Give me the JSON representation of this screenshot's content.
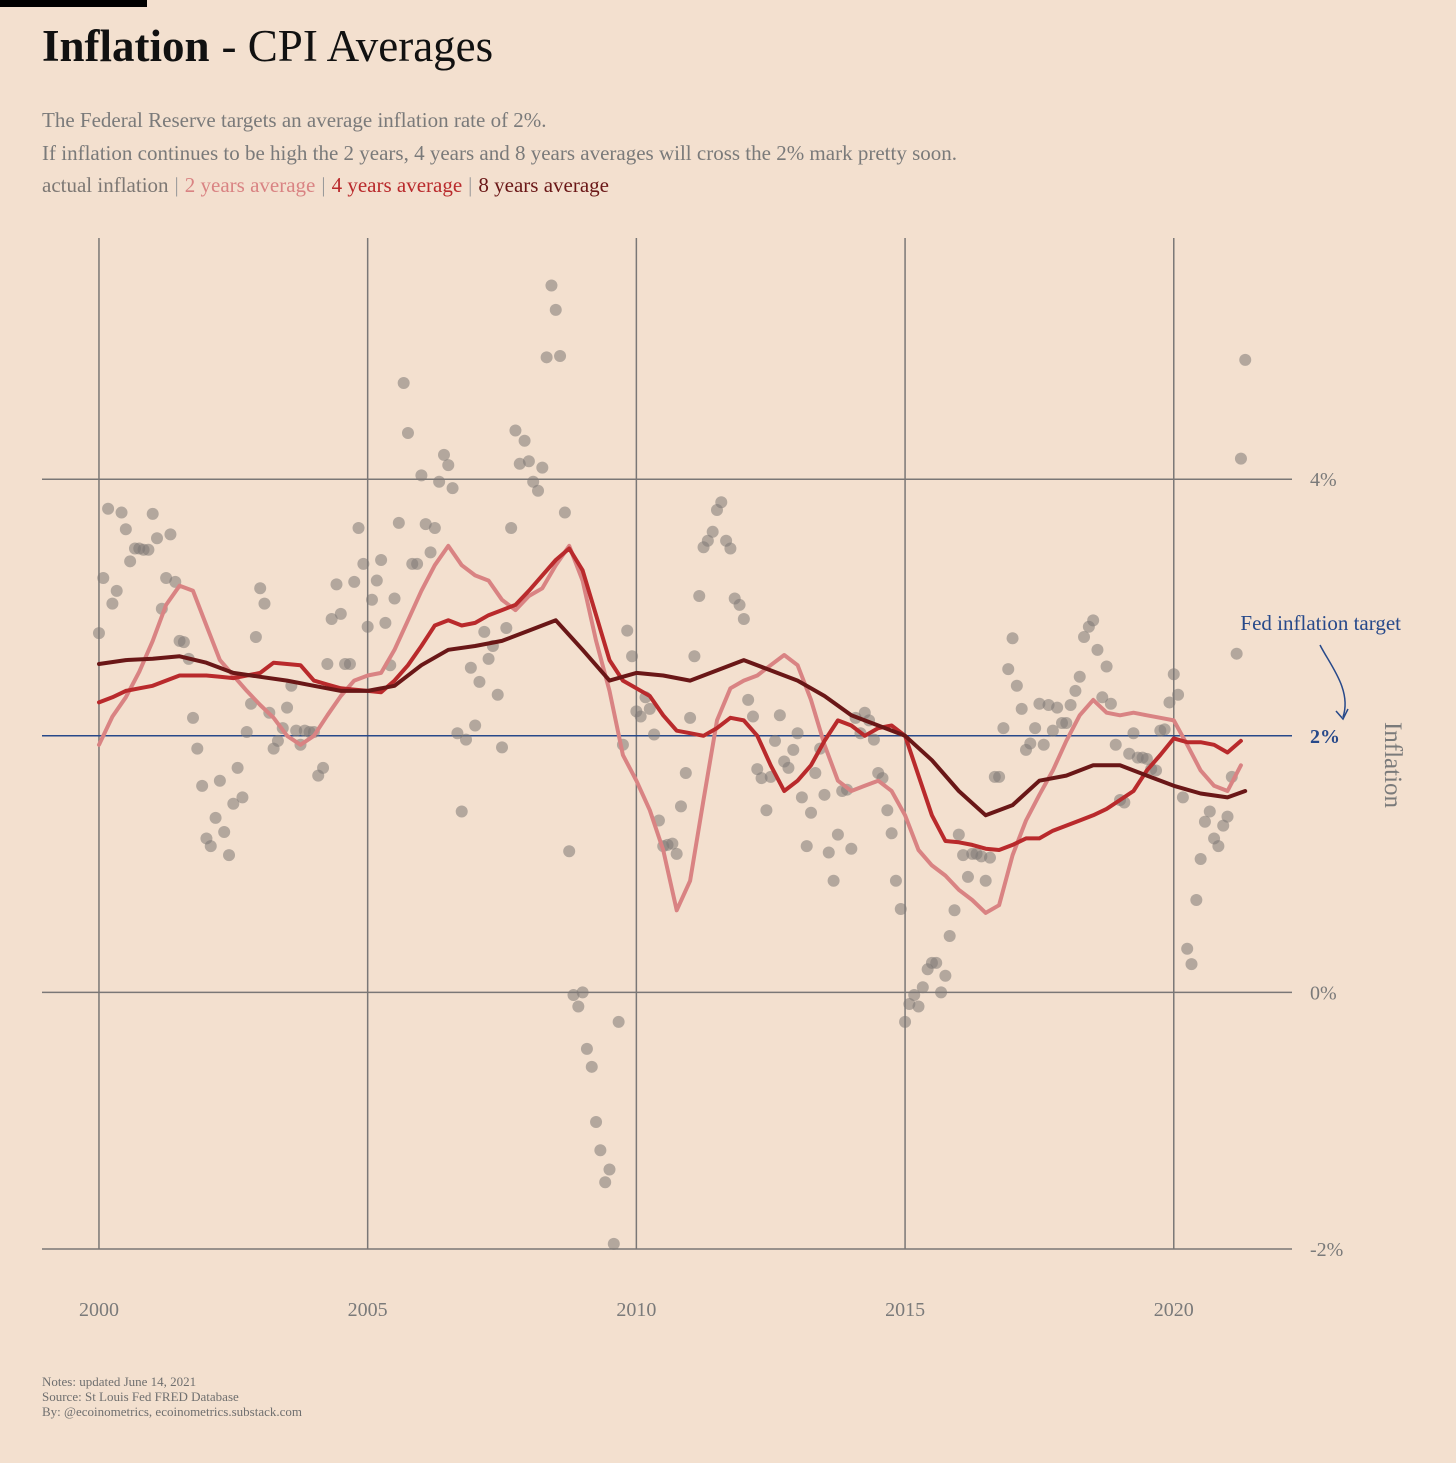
{
  "chart_data": {
    "type": "scatter",
    "title_parts": [
      "Inflation",
      "- CPI Averages"
    ],
    "subtitle": [
      "The Federal Reserve targets an average inflation rate of 2%.",
      "If inflation continues to be high the 2 years, 4 years and 8 years averages will cross the 2% mark pretty soon."
    ],
    "legend_separator": "|",
    "y_label": "Inflation",
    "notes": [
      "Notes: updated June 14, 2021",
      "Source: St Louis Fed FRED Database",
      "By: @ecoinometrics, ecoinometrics.substack.com"
    ],
    "xlim": [
      1998.94,
      2022.2
    ],
    "xticks": [
      2000,
      2005,
      2010,
      2015,
      2020
    ],
    "ylim": [
      -2,
      5.88
    ],
    "yticks": [
      {
        "value": -2,
        "label": "-2%"
      },
      {
        "value": 0,
        "label": "0%"
      },
      {
        "value": 2,
        "label": "2%"
      },
      {
        "value": 4,
        "label": "4%"
      }
    ],
    "grid": true,
    "target": {
      "value": 2,
      "label": "Fed inflation target",
      "color": "#27498a"
    },
    "series": [
      {
        "name": "actual inflation",
        "color": "#7d7874",
        "style": "points",
        "x": [
          2000,
          2000.08,
          2000.17,
          2000.25,
          2000.33,
          2000.42,
          2000.5,
          2000.58,
          2000.67,
          2000.75,
          2000.83,
          2000.92,
          2001,
          2001.08,
          2001.17,
          2001.25,
          2001.33,
          2001.42,
          2001.5,
          2001.58,
          2001.67,
          2001.75,
          2001.83,
          2001.92,
          2002,
          2002.08,
          2002.17,
          2002.25,
          2002.33,
          2002.42,
          2002.5,
          2002.58,
          2002.67,
          2002.75,
          2002.83,
          2002.92,
          2003,
          2003.08,
          2003.17,
          2003.25,
          2003.33,
          2003.42,
          2003.5,
          2003.58,
          2003.67,
          2003.75,
          2003.83,
          2003.92,
          2004,
          2004.08,
          2004.17,
          2004.25,
          2004.33,
          2004.42,
          2004.5,
          2004.58,
          2004.67,
          2004.75,
          2004.83,
          2004.92,
          2005,
          2005.08,
          2005.17,
          2005.25,
          2005.33,
          2005.42,
          2005.5,
          2005.58,
          2005.67,
          2005.75,
          2005.83,
          2005.92,
          2006,
          2006.08,
          2006.17,
          2006.25,
          2006.33,
          2006.42,
          2006.5,
          2006.58,
          2006.67,
          2006.75,
          2006.83,
          2006.92,
          2007,
          2007.08,
          2007.17,
          2007.25,
          2007.33,
          2007.42,
          2007.5,
          2007.58,
          2007.67,
          2007.75,
          2007.83,
          2007.92,
          2008,
          2008.08,
          2008.17,
          2008.25,
          2008.33,
          2008.42,
          2008.5,
          2008.58,
          2008.67,
          2008.75,
          2008.83,
          2008.92,
          2009,
          2009.08,
          2009.17,
          2009.25,
          2009.33,
          2009.42,
          2009.5,
          2009.58,
          2009.67,
          2009.75,
          2009.83,
          2009.92,
          2010,
          2010.08,
          2010.17,
          2010.25,
          2010.33,
          2010.42,
          2010.5,
          2010.58,
          2010.67,
          2010.75,
          2010.83,
          2010.92,
          2011,
          2011.08,
          2011.17,
          2011.25,
          2011.33,
          2011.42,
          2011.5,
          2011.58,
          2011.67,
          2011.75,
          2011.83,
          2011.92,
          2012,
          2012.08,
          2012.17,
          2012.25,
          2012.33,
          2012.42,
          2012.5,
          2012.58,
          2012.67,
          2012.75,
          2012.83,
          2012.92,
          2013,
          2013.08,
          2013.17,
          2013.25,
          2013.33,
          2013.42,
          2013.5,
          2013.58,
          2013.67,
          2013.75,
          2013.83,
          2013.92,
          2014,
          2014.08,
          2014.17,
          2014.25,
          2014.33,
          2014.42,
          2014.5,
          2014.58,
          2014.67,
          2014.75,
          2014.83,
          2014.92,
          2015,
          2015.08,
          2015.17,
          2015.25,
          2015.33,
          2015.42,
          2015.5,
          2015.58,
          2015.67,
          2015.75,
          2015.83,
          2015.92,
          2016,
          2016.08,
          2016.17,
          2016.25,
          2016.33,
          2016.42,
          2016.5,
          2016.58,
          2016.67,
          2016.75,
          2016.83,
          2016.92,
          2017,
          2017.08,
          2017.17,
          2017.25,
          2017.33,
          2017.42,
          2017.5,
          2017.58,
          2017.67,
          2017.75,
          2017.83,
          2017.92,
          2018,
          2018.08,
          2018.17,
          2018.25,
          2018.33,
          2018.42,
          2018.5,
          2018.58,
          2018.67,
          2018.75,
          2018.83,
          2018.92,
          2019,
          2019.08,
          2019.17,
          2019.25,
          2019.33,
          2019.42,
          2019.5,
          2019.58,
          2019.67,
          2019.75,
          2019.83,
          2019.92,
          2020,
          2020.08,
          2020.17,
          2020.25,
          2020.33,
          2020.42,
          2020.5,
          2020.58,
          2020.67,
          2020.75,
          2020.83,
          2020.92,
          2021,
          2021.08,
          2021.17,
          2021.25,
          2021.33
        ],
        "values": [
          2.8,
          3.23,
          3.77,
          3.03,
          3.13,
          3.74,
          3.61,
          3.36,
          3.46,
          3.46,
          3.45,
          3.45,
          3.73,
          3.54,
          2.99,
          3.23,
          3.57,
          3.2,
          2.74,
          2.73,
          2.6,
          2.14,
          1.9,
          1.61,
          1.2,
          1.14,
          1.36,
          1.65,
          1.25,
          1.07,
          1.47,
          1.75,
          1.52,
          2.03,
          2.25,
          2.77,
          3.15,
          3.03,
          2.18,
          1.9,
          1.96,
          2.06,
          2.22,
          2.39,
          2.04,
          1.93,
          2.04,
          2.03,
          2.03,
          1.69,
          1.75,
          2.56,
          2.91,
          3.18,
          2.95,
          2.56,
          2.56,
          3.2,
          3.62,
          3.34,
          2.85,
          3.06,
          3.21,
          3.37,
          2.88,
          2.55,
          3.07,
          3.66,
          4.75,
          4.36,
          3.34,
          3.34,
          4.03,
          3.65,
          3.43,
          3.62,
          3.98,
          4.19,
          4.11,
          3.93,
          2.02,
          1.41,
          1.97,
          2.53,
          2.08,
          2.42,
          2.81,
          2.6,
          2.7,
          2.32,
          1.91,
          2.84,
          3.62,
          4.38,
          4.12,
          4.3,
          4.14,
          3.98,
          3.91,
          4.09,
          4.95,
          5.51,
          5.32,
          4.96,
          3.74,
          1.1,
          -0.02,
          -0.11,
          0.0,
          -0.44,
          -0.58,
          -1.01,
          -1.23,
          -1.48,
          -1.38,
          -1.96,
          -0.23,
          1.93,
          2.82,
          2.62,
          2.19,
          2.15,
          2.3,
          2.21,
          2.01,
          1.34,
          1.14,
          1.15,
          1.16,
          1.08,
          1.45,
          1.71,
          2.14,
          2.62,
          3.09,
          3.47,
          3.52,
          3.59,
          3.76,
          3.82,
          3.52,
          3.46,
          3.07,
          3.02,
          2.91,
          2.28,
          2.15,
          1.74,
          1.67,
          1.42,
          1.68,
          1.96,
          2.16,
          1.8,
          1.75,
          1.89,
          2.02,
          1.52,
          1.14,
          1.4,
          1.71,
          1.9,
          1.54,
          1.09,
          0.87,
          1.23,
          1.57,
          1.58,
          1.12,
          2.14,
          2.02,
          2.18,
          2.12,
          1.97,
          1.71,
          1.67,
          1.42,
          1.24,
          0.87,
          0.65,
          -0.23,
          -0.09,
          -0.02,
          -0.11,
          0.04,
          0.18,
          0.23,
          0.23,
          0.0,
          0.13,
          0.44,
          0.64,
          1.23,
          1.07,
          0.9,
          1.08,
          1.08,
          1.06,
          0.87,
          1.05,
          1.68,
          1.68,
          2.06,
          2.52,
          2.76,
          2.39,
          2.21,
          1.89,
          1.94,
          2.06,
          2.25,
          1.93,
          2.24,
          2.04,
          2.22,
          2.1,
          2.1,
          2.24,
          2.35,
          2.46,
          2.77,
          2.85,
          2.9,
          2.67,
          2.3,
          2.54,
          2.25,
          1.93,
          1.5,
          1.48,
          1.86,
          2.02,
          1.83,
          1.83,
          1.82,
          1.74,
          1.73,
          2.04,
          2.05,
          2.26,
          2.48,
          2.32,
          1.52,
          0.34,
          0.22,
          0.72,
          1.04,
          1.33,
          1.41,
          1.2,
          1.14,
          1.3,
          1.37,
          1.68,
          2.64,
          4.16,
          4.93
        ]
      },
      {
        "name": "2 years average",
        "color": "#d98383",
        "style": "line",
        "x": [
          2000,
          2000.25,
          2000.5,
          2000.75,
          2001,
          2001.25,
          2001.5,
          2001.75,
          2002,
          2002.25,
          2002.5,
          2002.75,
          2003,
          2003.25,
          2003.5,
          2003.75,
          2004,
          2004.25,
          2004.5,
          2004.75,
          2005,
          2005.25,
          2005.5,
          2005.75,
          2006,
          2006.25,
          2006.5,
          2006.75,
          2007,
          2007.25,
          2007.5,
          2007.75,
          2008,
          2008.25,
          2008.5,
          2008.75,
          2009,
          2009.25,
          2009.5,
          2009.75,
          2010,
          2010.25,
          2010.5,
          2010.75,
          2011,
          2011.25,
          2011.5,
          2011.75,
          2012,
          2012.25,
          2012.5,
          2012.75,
          2013,
          2013.25,
          2013.5,
          2013.75,
          2014,
          2014.25,
          2014.5,
          2014.75,
          2015,
          2015.25,
          2015.5,
          2015.75,
          2016,
          2016.25,
          2016.5,
          2016.75,
          2017,
          2017.25,
          2017.5,
          2017.75,
          2018,
          2018.25,
          2018.5,
          2018.75,
          2019,
          2019.25,
          2019.5,
          2019.75,
          2020,
          2020.25,
          2020.5,
          2020.75,
          2021,
          2021.25
        ],
        "values": [
          1.93,
          2.15,
          2.3,
          2.5,
          2.74,
          3.02,
          3.17,
          3.13,
          2.86,
          2.59,
          2.47,
          2.35,
          2.24,
          2.14,
          2.0,
          1.93,
          2.0,
          2.16,
          2.31,
          2.43,
          2.47,
          2.49,
          2.67,
          2.9,
          3.13,
          3.33,
          3.48,
          3.33,
          3.25,
          3.21,
          3.06,
          2.98,
          3.09,
          3.15,
          3.33,
          3.48,
          3.21,
          2.74,
          2.35,
          1.85,
          1.65,
          1.42,
          1.11,
          0.64,
          0.87,
          1.5,
          2.12,
          2.37,
          2.43,
          2.47,
          2.55,
          2.63,
          2.55,
          2.28,
          1.93,
          1.65,
          1.57,
          1.61,
          1.65,
          1.57,
          1.38,
          1.11,
          0.99,
          0.91,
          0.8,
          0.72,
          0.62,
          0.68,
          1.07,
          1.34,
          1.54,
          1.73,
          1.96,
          2.16,
          2.28,
          2.18,
          2.16,
          2.18,
          2.16,
          2.14,
          2.12,
          1.93,
          1.73,
          1.61,
          1.57,
          1.77
        ]
      },
      {
        "name": "4 years average",
        "color": "#b92a2c",
        "style": "line",
        "x": [
          2000,
          2000.25,
          2000.5,
          2000.75,
          2001,
          2001.25,
          2001.5,
          2001.75,
          2002,
          2002.25,
          2002.5,
          2002.75,
          2003,
          2003.25,
          2003.5,
          2003.75,
          2004,
          2004.25,
          2004.5,
          2004.75,
          2005,
          2005.25,
          2005.5,
          2005.75,
          2006,
          2006.25,
          2006.5,
          2006.75,
          2007,
          2007.25,
          2007.5,
          2007.75,
          2008,
          2008.25,
          2008.5,
          2008.75,
          2009,
          2009.25,
          2009.5,
          2009.75,
          2010,
          2010.25,
          2010.5,
          2010.75,
          2011,
          2011.25,
          2011.5,
          2011.75,
          2012,
          2012.25,
          2012.5,
          2012.75,
          2013,
          2013.25,
          2013.5,
          2013.75,
          2014,
          2014.25,
          2014.5,
          2014.75,
          2015,
          2015.25,
          2015.5,
          2015.75,
          2016,
          2016.25,
          2016.5,
          2016.75,
          2017,
          2017.25,
          2017.5,
          2017.75,
          2018,
          2018.25,
          2018.5,
          2018.75,
          2019,
          2019.25,
          2019.5,
          2019.75,
          2020,
          2020.25,
          2020.5,
          2020.75,
          2021,
          2021.25
        ],
        "values": [
          2.26,
          2.3,
          2.35,
          2.37,
          2.39,
          2.43,
          2.47,
          2.47,
          2.47,
          2.46,
          2.45,
          2.47,
          2.49,
          2.57,
          2.56,
          2.55,
          2.43,
          2.4,
          2.37,
          2.36,
          2.35,
          2.34,
          2.43,
          2.55,
          2.7,
          2.86,
          2.9,
          2.86,
          2.88,
          2.94,
          2.98,
          3.02,
          3.13,
          3.25,
          3.37,
          3.46,
          3.29,
          2.94,
          2.59,
          2.43,
          2.37,
          2.31,
          2.16,
          2.04,
          2.02,
          2.0,
          2.06,
          2.14,
          2.12,
          2.0,
          1.77,
          1.57,
          1.65,
          1.77,
          1.96,
          2.12,
          2.08,
          2.0,
          2.06,
          2.08,
          2.0,
          1.69,
          1.38,
          1.18,
          1.17,
          1.15,
          1.12,
          1.11,
          1.15,
          1.2,
          1.2,
          1.26,
          1.3,
          1.34,
          1.38,
          1.43,
          1.5,
          1.57,
          1.73,
          1.85,
          1.98,
          1.95,
          1.95,
          1.93,
          1.87,
          1.96
        ]
      },
      {
        "name": "8 years average",
        "color": "#6a1717",
        "style": "line",
        "x": [
          2000,
          2000.5,
          2001,
          2001.5,
          2002,
          2002.5,
          2003,
          2003.5,
          2004,
          2004.5,
          2005,
          2005.5,
          2006,
          2006.5,
          2007,
          2007.5,
          2008,
          2008.5,
          2009,
          2009.5,
          2010,
          2010.5,
          2011,
          2011.5,
          2012,
          2012.5,
          2013,
          2013.5,
          2014,
          2014.5,
          2015,
          2015.5,
          2016,
          2016.5,
          2017,
          2017.5,
          2018,
          2018.5,
          2019,
          2019.5,
          2020,
          2020.5,
          2021,
          2021.33
        ],
        "values": [
          2.56,
          2.59,
          2.6,
          2.62,
          2.57,
          2.49,
          2.46,
          2.43,
          2.39,
          2.35,
          2.35,
          2.39,
          2.55,
          2.67,
          2.7,
          2.74,
          2.82,
          2.9,
          2.67,
          2.43,
          2.49,
          2.47,
          2.43,
          2.51,
          2.59,
          2.51,
          2.43,
          2.31,
          2.16,
          2.08,
          2.0,
          1.81,
          1.57,
          1.38,
          1.46,
          1.65,
          1.69,
          1.77,
          1.77,
          1.69,
          1.61,
          1.55,
          1.52,
          1.57
        ]
      }
    ]
  }
}
